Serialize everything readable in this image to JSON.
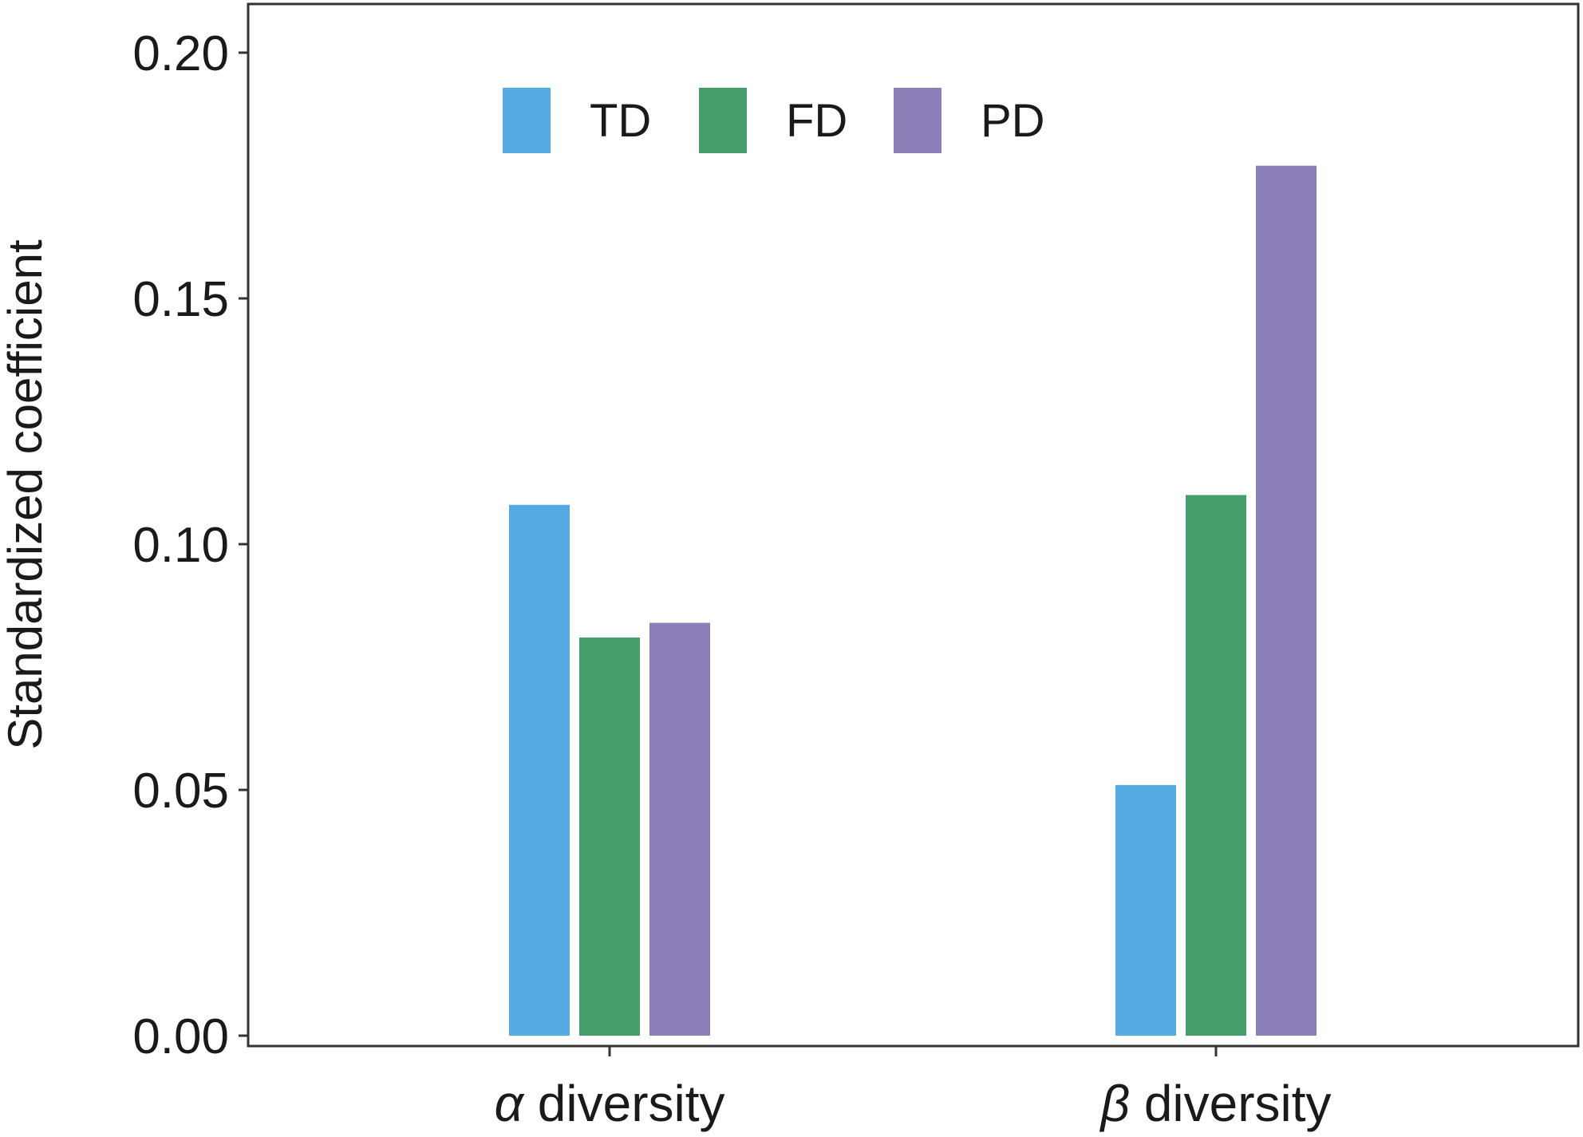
{
  "chart_data": {
    "type": "bar",
    "categories": [
      {
        "symbol": "α",
        "text": " diversity"
      },
      {
        "symbol": "β",
        "text": " diversity"
      }
    ],
    "series": [
      {
        "name": "TD",
        "color": "#56aae2",
        "values": [
          0.108,
          0.051
        ]
      },
      {
        "name": "FD",
        "color": "#459e69",
        "values": [
          0.081,
          0.11
        ]
      },
      {
        "name": "PD",
        "color": "#8c7fb8",
        "values": [
          0.084,
          0.177
        ]
      }
    ],
    "ylabel": "Standardized coefficient",
    "xlabel": "",
    "ylim": [
      0,
      0.21
    ],
    "yticks": [
      "0.00",
      "0.05",
      "0.10",
      "0.15",
      "0.20"
    ],
    "grid": false,
    "legend_position": "top-left"
  }
}
